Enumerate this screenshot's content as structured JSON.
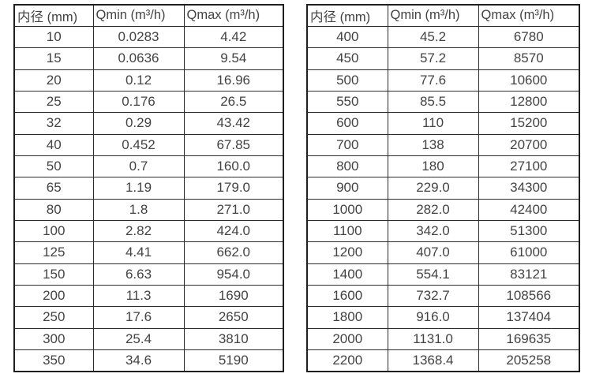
{
  "colors": {
    "background": "#ffffff",
    "border_outer": "#1f1f1f",
    "border_inner": "#2b2b2b",
    "text": "#434343"
  },
  "tables": [
    {
      "name": "flow-rates-small-diameters",
      "headers": [
        "内径 (mm)",
        "Qmin (m³/h)",
        "Qmax (m³/h)"
      ],
      "rows": [
        [
          "10",
          "0.0283",
          "4.42"
        ],
        [
          "15",
          "0.0636",
          "9.54"
        ],
        [
          "20",
          "0.12",
          "16.96"
        ],
        [
          "25",
          "0.176",
          "26.5"
        ],
        [
          "32",
          "0.29",
          "43.42"
        ],
        [
          "40",
          "0.452",
          "67.85"
        ],
        [
          "50",
          "0.7",
          "160.0"
        ],
        [
          "65",
          "1.19",
          "179.0"
        ],
        [
          "80",
          "1.8",
          "271.0"
        ],
        [
          "100",
          "2.82",
          "424.0"
        ],
        [
          "125",
          "4.41",
          "662.0"
        ],
        [
          "150",
          "6.63",
          "954.0"
        ],
        [
          "200",
          "11.3",
          "1690"
        ],
        [
          "250",
          "17.6",
          "2650"
        ],
        [
          "300",
          "25.4",
          "3810"
        ],
        [
          "350",
          "34.6",
          "5190"
        ]
      ]
    },
    {
      "name": "flow-rates-large-diameters",
      "headers": [
        "内径 (mm)",
        "Qmin (m³/h)",
        "Qmax (m³/h)"
      ],
      "rows": [
        [
          "400",
          "45.2",
          "6780"
        ],
        [
          "450",
          "57.2",
          "8570"
        ],
        [
          "500",
          "77.6",
          "10600"
        ],
        [
          "550",
          "85.5",
          "12800"
        ],
        [
          "600",
          "110",
          "15200"
        ],
        [
          "700",
          "138",
          "20700"
        ],
        [
          "800",
          "180",
          "27100"
        ],
        [
          "900",
          "229.0",
          "34300"
        ],
        [
          "1000",
          "282.0",
          "42400"
        ],
        [
          "1100",
          "342.0",
          "51300"
        ],
        [
          "1200",
          "407.0",
          "61000"
        ],
        [
          "1400",
          "554.1",
          "83121"
        ],
        [
          "1600",
          "732.7",
          "108566"
        ],
        [
          "1800",
          "916.0",
          "137404"
        ],
        [
          "2000",
          "1131.0",
          "169635"
        ],
        [
          "2200",
          "1368.4",
          "205258"
        ]
      ]
    }
  ]
}
